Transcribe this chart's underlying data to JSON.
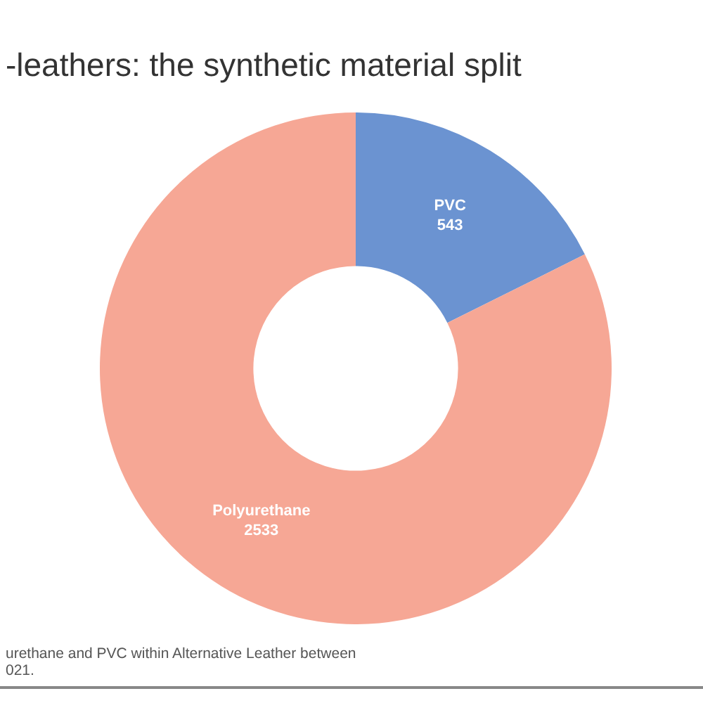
{
  "chart_data": {
    "type": "donut",
    "title": "-leathers: the synthetic material split",
    "categories": [
      "PVC",
      "Polyurethane"
    ],
    "values": [
      543,
      2533
    ],
    "colors": [
      "#6b93d1",
      "#f6a795"
    ],
    "data_labels": true,
    "annotations": [
      "urethane and PVC within Alternative Leather between",
      "021."
    ]
  }
}
